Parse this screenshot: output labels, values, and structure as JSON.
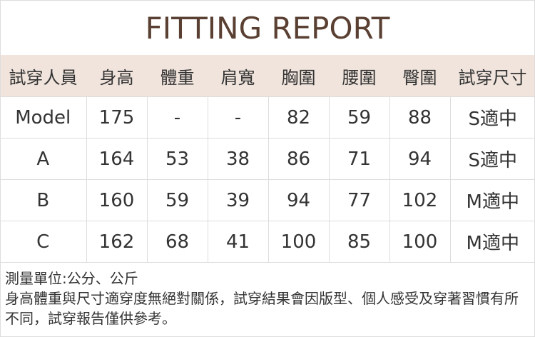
{
  "title": "FITTING REPORT",
  "colors": {
    "title": "#5a4032",
    "header_bg": "#f0e4dc",
    "border": "#dddddd"
  },
  "table": {
    "headers": [
      "試穿人員",
      "身高",
      "體重",
      "肩寬",
      "胸圍",
      "腰圍",
      "臀圍",
      "試穿尺寸"
    ],
    "rows": [
      [
        "Model",
        "175",
        "-",
        "-",
        "82",
        "59",
        "88",
        "S適中"
      ],
      [
        "A",
        "164",
        "53",
        "38",
        "86",
        "71",
        "94",
        "S適中"
      ],
      [
        "B",
        "160",
        "59",
        "39",
        "94",
        "77",
        "102",
        "M適中"
      ],
      [
        "C",
        "162",
        "68",
        "41",
        "100",
        "85",
        "100",
        "M適中"
      ]
    ]
  },
  "notes": {
    "units": "測量單位:公分、公斤",
    "disclaimer": "身高體重與尺寸適穿度無絕對關係，試穿結果會因版型、個人感受及穿著習慣有所不同，試穿報告僅供參考。"
  }
}
